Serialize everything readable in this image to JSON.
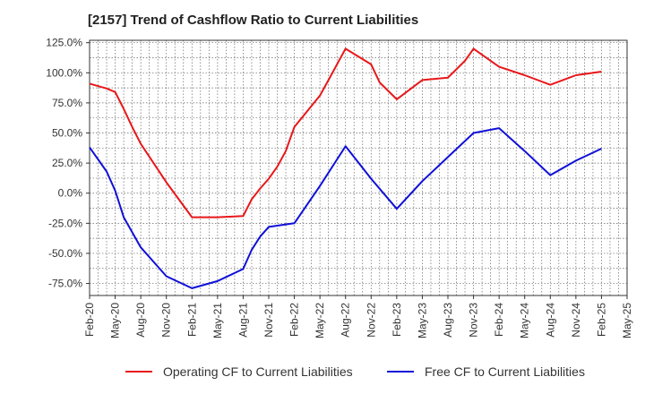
{
  "title": "[2157]  Trend of Cashflow Ratio to Current Liabilities",
  "chart_data": {
    "type": "line",
    "title": "[2157]  Trend of Cashflow Ratio to Current Liabilities",
    "xlabel": "",
    "ylabel": "",
    "ylim": [
      -85,
      127
    ],
    "grid": true,
    "legend_position": "bottom",
    "y_ticks": [
      {
        "value": 125,
        "label": "125.0%"
      },
      {
        "value": 100,
        "label": "100.0%"
      },
      {
        "value": 75,
        "label": "75.0%"
      },
      {
        "value": 50,
        "label": "50.0%"
      },
      {
        "value": 25,
        "label": "25.0%"
      },
      {
        "value": 0,
        "label": "0.0%"
      },
      {
        "value": -25,
        "label": "-25.0%"
      },
      {
        "value": -50,
        "label": "-50.0%"
      },
      {
        "value": -75,
        "label": "-75.0%"
      }
    ],
    "x_ticks": [
      "Feb-20",
      "May-20",
      "Aug-20",
      "Nov-20",
      "Feb-21",
      "May-21",
      "Aug-21",
      "Nov-21",
      "Feb-22",
      "May-22",
      "Aug-22",
      "Nov-22",
      "Feb-23",
      "May-23",
      "Aug-23",
      "Nov-23",
      "Feb-24",
      "May-24",
      "Aug-24",
      "Nov-24",
      "Feb-25",
      "May-25"
    ],
    "series": [
      {
        "name": "Operating CF to Current Liabilities",
        "color": "#e8171a",
        "points": [
          {
            "x": "Feb-20",
            "y": 91
          },
          {
            "x": "Apr-20",
            "y": 87
          },
          {
            "x": "May-20",
            "y": 84
          },
          {
            "x": "Jun-20",
            "y": 70
          },
          {
            "x": "Jul-20",
            "y": 55
          },
          {
            "x": "Aug-20",
            "y": 41
          },
          {
            "x": "Nov-20",
            "y": 9
          },
          {
            "x": "Feb-21",
            "y": -20
          },
          {
            "x": "May-21",
            "y": -20
          },
          {
            "x": "Aug-21",
            "y": -19
          },
          {
            "x": "Sep-21",
            "y": -5
          },
          {
            "x": "Oct-21",
            "y": 4
          },
          {
            "x": "Nov-21",
            "y": 12
          },
          {
            "x": "Dec-21",
            "y": 22
          },
          {
            "x": "Jan-22",
            "y": 35
          },
          {
            "x": "Feb-22",
            "y": 55
          },
          {
            "x": "May-22",
            "y": 81
          },
          {
            "x": "Jun-22",
            "y": 94
          },
          {
            "x": "Aug-22",
            "y": 120
          },
          {
            "x": "Nov-22",
            "y": 107
          },
          {
            "x": "Dec-22",
            "y": 92
          },
          {
            "x": "Feb-23",
            "y": 78
          },
          {
            "x": "May-23",
            "y": 94
          },
          {
            "x": "Aug-23",
            "y": 96
          },
          {
            "x": "Oct-23",
            "y": 110
          },
          {
            "x": "Nov-23",
            "y": 120
          },
          {
            "x": "Feb-24",
            "y": 105
          },
          {
            "x": "May-24",
            "y": 98
          },
          {
            "x": "Aug-24",
            "y": 90
          },
          {
            "x": "Nov-24",
            "y": 98
          },
          {
            "x": "Feb-25",
            "y": 101
          }
        ]
      },
      {
        "name": "Free CF to Current Liabilities",
        "color": "#1010d8",
        "points": [
          {
            "x": "Feb-20",
            "y": 38
          },
          {
            "x": "Apr-20",
            "y": 18
          },
          {
            "x": "May-20",
            "y": 2
          },
          {
            "x": "Jun-20",
            "y": -20
          },
          {
            "x": "Aug-20",
            "y": -45
          },
          {
            "x": "Nov-20",
            "y": -69
          },
          {
            "x": "Feb-21",
            "y": -79
          },
          {
            "x": "May-21",
            "y": -73
          },
          {
            "x": "Aug-21",
            "y": -63
          },
          {
            "x": "Sep-21",
            "y": -47
          },
          {
            "x": "Oct-21",
            "y": -36
          },
          {
            "x": "Nov-21",
            "y": -28
          },
          {
            "x": "Feb-22",
            "y": -25
          },
          {
            "x": "May-22",
            "y": 6
          },
          {
            "x": "Aug-22",
            "y": 39
          },
          {
            "x": "Nov-22",
            "y": 12
          },
          {
            "x": "Feb-23",
            "y": -13
          },
          {
            "x": "May-23",
            "y": 10
          },
          {
            "x": "Aug-23",
            "y": 30
          },
          {
            "x": "Nov-23",
            "y": 50
          },
          {
            "x": "Feb-24",
            "y": 54
          },
          {
            "x": "May-24",
            "y": 35
          },
          {
            "x": "Aug-24",
            "y": 15
          },
          {
            "x": "Nov-24",
            "y": 27
          },
          {
            "x": "Feb-25",
            "y": 37
          }
        ]
      }
    ]
  }
}
